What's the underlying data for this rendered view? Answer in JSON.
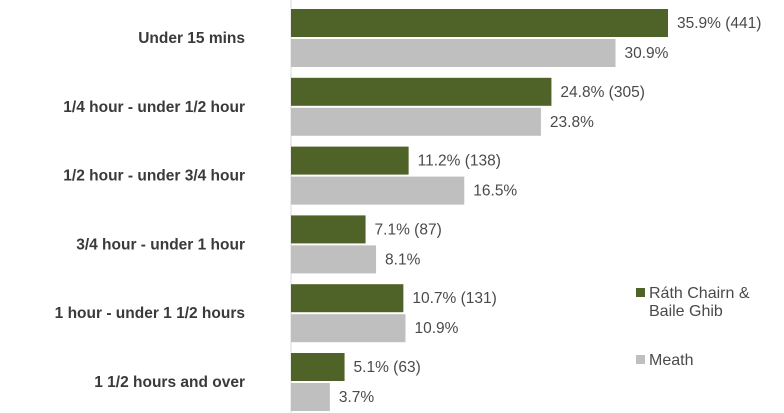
{
  "chart_data": {
    "type": "bar",
    "orientation": "horizontal",
    "categories": [
      "Under 15 mins",
      "1/4 hour - under 1/2 hour",
      "1/2 hour - under 3/4 hour",
      "3/4 hour - under 1 hour",
      "1 hour - under 1 1/2 hours",
      "1 1/2 hours and over"
    ],
    "series": [
      {
        "name": "Ráth Chairn & Baile Ghib",
        "name_lines": [
          "Ráth Chairn &",
          "Baile Ghib"
        ],
        "color": "#4f6228",
        "values": [
          35.9,
          24.8,
          11.2,
          7.1,
          10.7,
          5.1
        ],
        "labels": [
          "35.9% (441)",
          "24.8% (305)",
          "11.2% (138)",
          "7.1% (87)",
          "10.7% (131)",
          "5.1% (63)"
        ]
      },
      {
        "name": "Meath",
        "color": "#bfbfbf",
        "values": [
          30.9,
          23.8,
          16.5,
          8.1,
          10.9,
          3.7
        ],
        "labels": [
          "30.9%",
          "23.8%",
          "16.5%",
          "8.1%",
          "10.9%",
          "3.7%"
        ]
      }
    ],
    "xlim": [
      0,
      40
    ],
    "grid": false,
    "legend_position": "right"
  }
}
